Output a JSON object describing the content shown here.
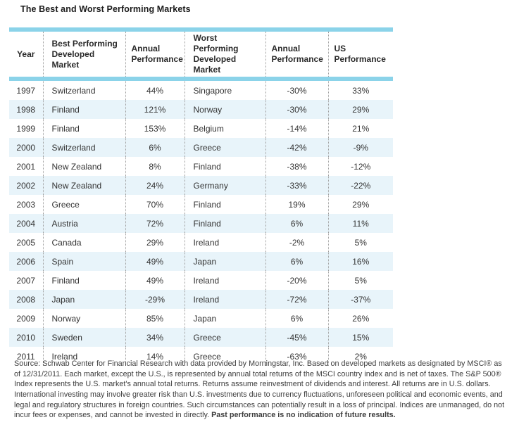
{
  "title": "The Best and Worst Performing Markets",
  "chart_data": {
    "type": "table",
    "title": "The Best and Worst Performing Markets",
    "columns": [
      "Year",
      "Best Performing Developed Market",
      "Annual Performance",
      "Worst Performing Developed Market",
      "Annual Performance",
      "US Performance"
    ],
    "rows": [
      [
        "1997",
        "Switzerland",
        "44%",
        "Singapore",
        "-30%",
        "33%"
      ],
      [
        "1998",
        "Finland",
        "121%",
        "Norway",
        "-30%",
        "29%"
      ],
      [
        "1999",
        "Finland",
        "153%",
        "Belgium",
        "-14%",
        "21%"
      ],
      [
        "2000",
        "Switzerland",
        "6%",
        "Greece",
        "-42%",
        "-9%"
      ],
      [
        "2001",
        "New Zealand",
        "8%",
        "Finland",
        "-38%",
        "-12%"
      ],
      [
        "2002",
        "New Zealand",
        "24%",
        "Germany",
        "-33%",
        "-22%"
      ],
      [
        "2003",
        "Greece",
        "70%",
        "Finland",
        "19%",
        "29%"
      ],
      [
        "2004",
        "Austria",
        "72%",
        "Finland",
        "6%",
        "11%"
      ],
      [
        "2005",
        "Canada",
        "29%",
        "Ireland",
        "-2%",
        "5%"
      ],
      [
        "2006",
        "Spain",
        "49%",
        "Japan",
        "6%",
        "16%"
      ],
      [
        "2007",
        "Finland",
        "49%",
        "Ireland",
        "-20%",
        "5%"
      ],
      [
        "2008",
        "Japan",
        "-29%",
        "Ireland",
        "-72%",
        "-37%"
      ],
      [
        "2009",
        "Norway",
        "85%",
        "Japan",
        "6%",
        "26%"
      ],
      [
        "2010",
        "Sweden",
        "34%",
        "Greece",
        "-45%",
        "15%"
      ],
      [
        "2011",
        "Ireland",
        "14%",
        "Greece",
        "-63%",
        "2%"
      ]
    ]
  },
  "footnote": {
    "text": "Source: Schwab Center for Financial Research with data provided by Morningstar, Inc. Based on developed markets as designated by MSCI® as of 12/31/2011. Each market, except the U.S., is represented by annual total returns of the MSCI country index and is net of taxes. The S&P 500® Index represents the U.S. market's annual total returns. Returns assume reinvestment of dividends and interest. All returns are in U.S. dollars. International investing may involve greater risk than U.S. investments due to currency fluctuations, unforeseen political and economic events, and legal and regulatory structures in foreign countries. Such circumstances can potentially result in a loss of principal. Indices are unmanaged, do not incur fees or expenses, and cannot be invested in directly. ",
    "bold_text": "Past performance is no indication of future results."
  },
  "colors": {
    "accent_bar": "#8bd3e9",
    "alt_row": "#e8f4fa",
    "divider": "#9e9e9e"
  }
}
